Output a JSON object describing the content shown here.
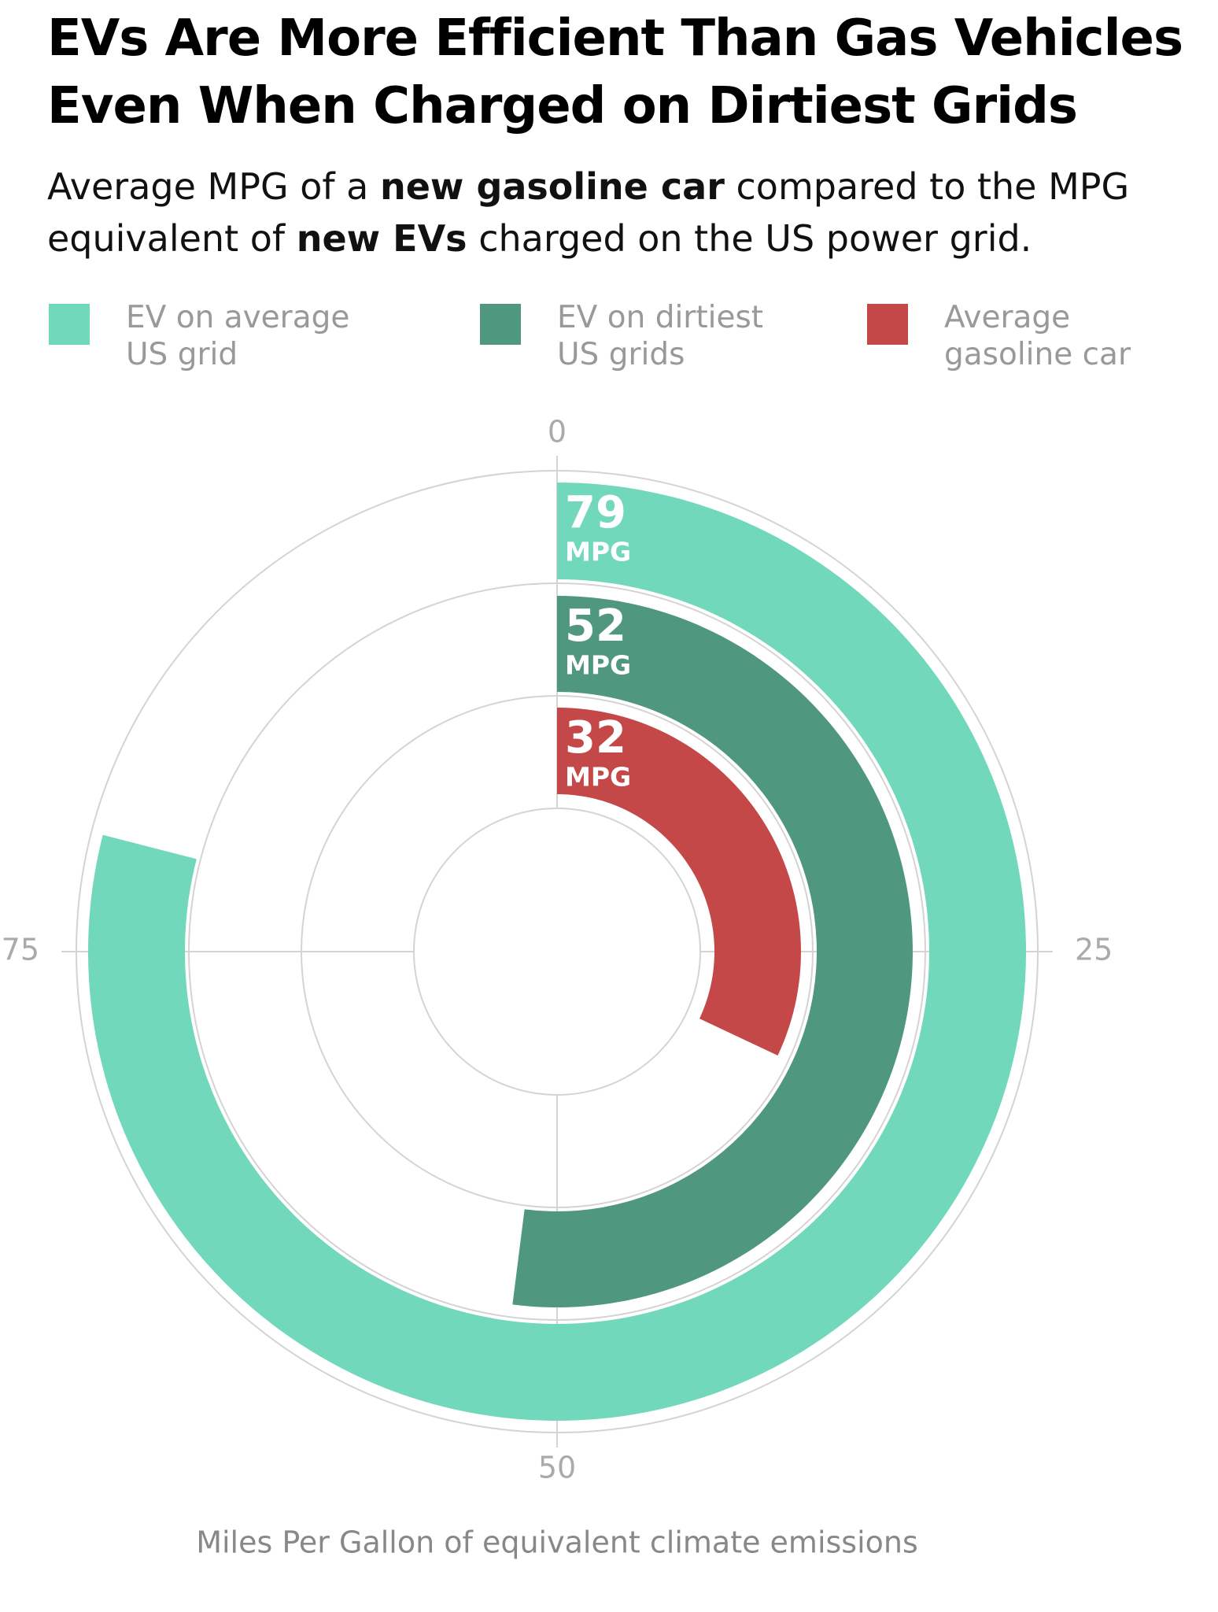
{
  "chart_data": {
    "type": "radial_bar",
    "title": "EVs Are More Efficient Than Gas Vehicles Even When Charged on Dirtiest Grids",
    "subtitle": [
      {
        "text": "Average MPG of a ",
        "bold": false
      },
      {
        "text": "new gasoline car",
        "bold": true
      },
      {
        "text": " compared to the MPG equivalent of ",
        "bold": false
      },
      {
        "text": "new EVs",
        "bold": true
      },
      {
        "text": " charged on the US power grid.",
        "bold": false
      }
    ],
    "categories": [
      "EV on average US grid",
      "EV on dirtiest US grids",
      "Average gasoline car"
    ],
    "values": [
      79,
      52,
      32
    ],
    "colors": [
      "#72d8bb",
      "#4f977f",
      "#c44848"
    ],
    "unit": "MPG",
    "xlim": [
      0,
      100
    ],
    "xticks": [
      0,
      25,
      50,
      75
    ],
    "xlabel": "Miles Per Gallon of equivalent climate emissions",
    "grid": true
  }
}
